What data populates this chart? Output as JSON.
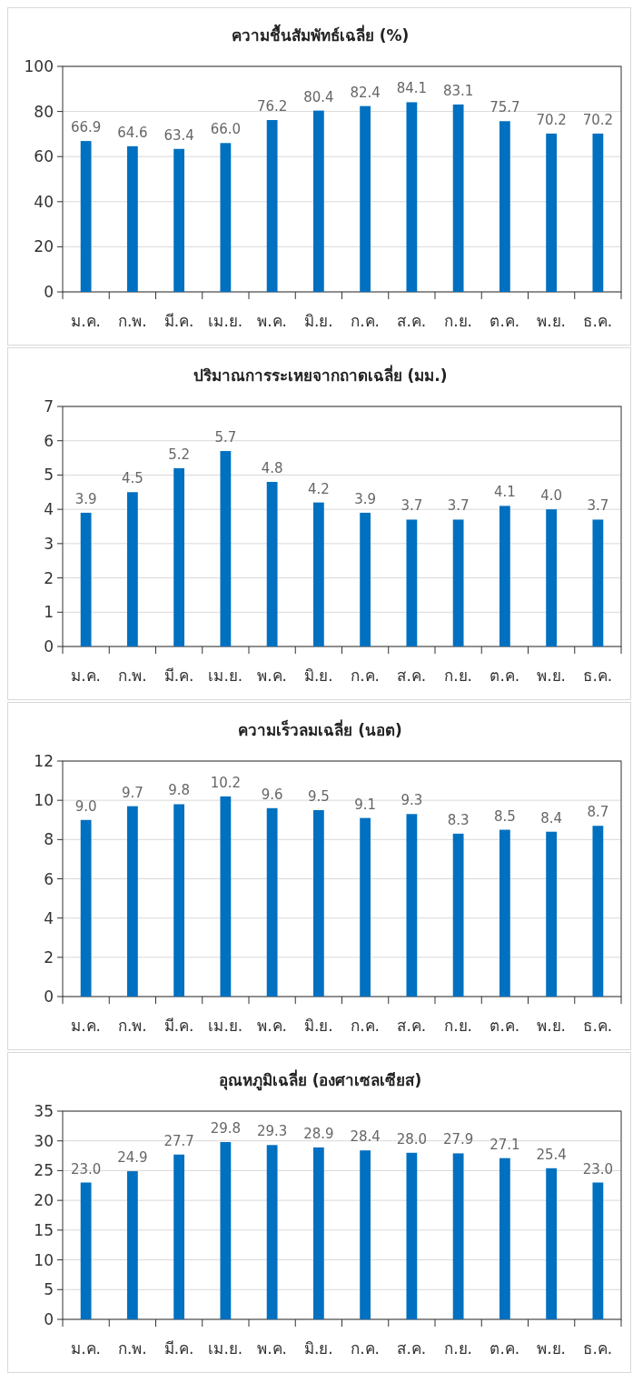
{
  "chart_data": [
    {
      "type": "bar",
      "title": "ความชื้นสัมพัทธ์เฉลี่ย (%)",
      "categories": [
        "ม.ค.",
        "ก.พ.",
        "มี.ค.",
        "เม.ย.",
        "พ.ค.",
        "มิ.ย.",
        "ก.ค.",
        "ส.ค.",
        "ก.ย.",
        "ต.ค.",
        "พ.ย.",
        "ธ.ค."
      ],
      "color": "#0070c0",
      "ylim": [
        0,
        100
      ],
      "yticks": [
        0,
        20,
        40,
        60,
        80,
        100
      ],
      "grid": "y",
      "values": [
        66.9,
        64.6,
        63.4,
        66.0,
        76.2,
        80.4,
        82.4,
        84.1,
        83.1,
        75.7,
        70.2,
        70.2
      ],
      "value_labels": [
        "66.9",
        "64.6",
        "63.4",
        "66.0",
        "76.2",
        "80.4",
        "82.4",
        "84.1",
        "83.1",
        "75.7",
        "70.2",
        "70.2"
      ]
    },
    {
      "type": "bar",
      "title": "ปริมาณการระเหยจากถาดเฉลี่ย (มม.)",
      "categories": [
        "ม.ค.",
        "ก.พ.",
        "มี.ค.",
        "เม.ย.",
        "พ.ค.",
        "มิ.ย.",
        "ก.ค.",
        "ส.ค.",
        "ก.ย.",
        "ต.ค.",
        "พ.ย.",
        "ธ.ค."
      ],
      "color": "#0070c0",
      "ylim": [
        0,
        7
      ],
      "yticks": [
        0,
        1,
        2,
        3,
        4,
        5,
        6,
        7
      ],
      "grid": "y",
      "values": [
        3.9,
        4.5,
        5.2,
        5.7,
        4.8,
        4.2,
        3.9,
        3.7,
        3.7,
        4.1,
        4.0,
        3.7
      ],
      "value_labels": [
        "3.9",
        "4.5",
        "5.2",
        "5.7",
        "4.8",
        "4.2",
        "3.9",
        "3.7",
        "3.7",
        "4.1",
        "4.0",
        "3.7"
      ]
    },
    {
      "type": "bar",
      "title": "ความเร็วลมเฉลี่ย (นอต)",
      "categories": [
        "ม.ค.",
        "ก.พ.",
        "มี.ค.",
        "เม.ย.",
        "พ.ค.",
        "มิ.ย.",
        "ก.ค.",
        "ส.ค.",
        "ก.ย.",
        "ต.ค.",
        "พ.ย.",
        "ธ.ค."
      ],
      "color": "#0070c0",
      "ylim": [
        0,
        12
      ],
      "yticks": [
        0,
        2,
        4,
        6,
        8,
        10,
        12
      ],
      "grid": "y",
      "values": [
        9.0,
        9.7,
        9.8,
        10.2,
        9.6,
        9.5,
        9.1,
        9.3,
        8.3,
        8.5,
        8.4,
        8.7
      ],
      "value_labels": [
        "9.0",
        "9.7",
        "9.8",
        "10.2",
        "9.6",
        "9.5",
        "9.1",
        "9.3",
        "8.3",
        "8.5",
        "8.4",
        "8.7"
      ]
    },
    {
      "type": "bar",
      "title": "อุณหภูมิเฉลี่ย (องศาเซลเซียส)",
      "categories": [
        "ม.ค.",
        "ก.พ.",
        "มี.ค.",
        "เม.ย.",
        "พ.ค.",
        "มิ.ย.",
        "ก.ค.",
        "ส.ค.",
        "ก.ย.",
        "ต.ค.",
        "พ.ย.",
        "ธ.ค."
      ],
      "color": "#0070c0",
      "ylim": [
        0,
        35
      ],
      "yticks": [
        0,
        5,
        10,
        15,
        20,
        25,
        30,
        35
      ],
      "grid": "y",
      "values": [
        23.0,
        24.9,
        27.7,
        29.8,
        29.3,
        28.9,
        28.4,
        28.0,
        27.9,
        27.1,
        25.4,
        23.0
      ],
      "value_labels": [
        "23.0",
        "24.9",
        "27.7",
        "29.8",
        "29.3",
        "28.9",
        "28.4",
        "28.0",
        "27.9",
        "27.1",
        "25.4",
        "23.0"
      ]
    }
  ]
}
